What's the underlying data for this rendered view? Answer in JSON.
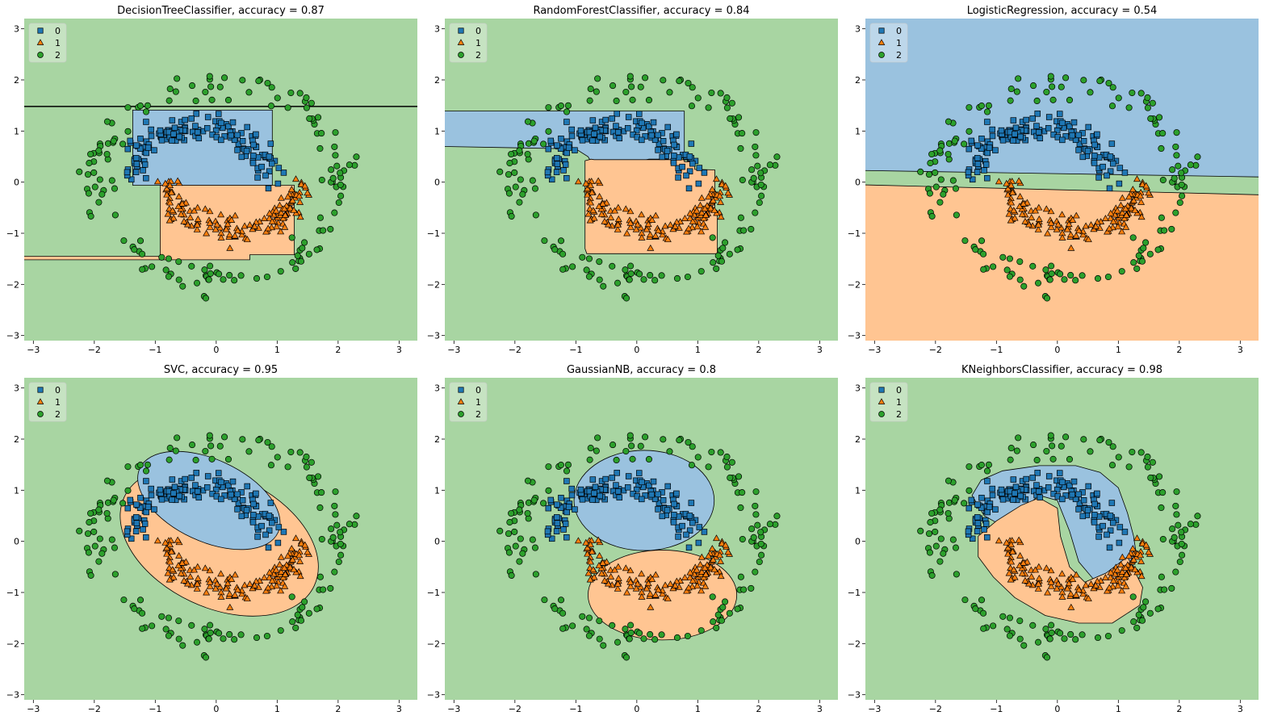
{
  "chart_data": [
    {
      "type": "scatter",
      "title": "DecisionTreeClassifier, accuracy = 0.87",
      "classifier": "DecisionTreeClassifier",
      "accuracy": 0.87,
      "decision_regions": "axis-aligned rectangles",
      "xlim": [
        -3.15,
        3.3
      ],
      "ylim": [
        -3.1,
        3.2
      ],
      "xticks": [
        "−3",
        "−2",
        "−1",
        "0",
        "1",
        "2",
        "3"
      ],
      "yticks": [
        "−3",
        "−2",
        "−1",
        "0",
        "1",
        "2",
        "3"
      ],
      "legend": [
        "0",
        "1",
        "2"
      ],
      "legend_position": "upper-left"
    },
    {
      "type": "scatter",
      "title": "RandomForestClassifier, accuracy = 0.84",
      "classifier": "RandomForestClassifier",
      "accuracy": 0.84,
      "decision_regions": "jagged axis-aligned ensemble",
      "xlim": [
        -3.15,
        3.3
      ],
      "ylim": [
        -3.1,
        3.2
      ],
      "xticks": [
        "−3",
        "−2",
        "−1",
        "0",
        "1",
        "2",
        "3"
      ],
      "yticks": [
        "−3",
        "−2",
        "−1",
        "0",
        "1",
        "2",
        "3"
      ],
      "legend": [
        "0",
        "1",
        "2"
      ],
      "legend_position": "upper-left"
    },
    {
      "type": "scatter",
      "title": "LogisticRegression, accuracy = 0.54",
      "classifier": "LogisticRegression",
      "accuracy": 0.54,
      "decision_regions": "linear bands",
      "xlim": [
        -3.15,
        3.3
      ],
      "ylim": [
        -3.1,
        3.2
      ],
      "xticks": [
        "−3",
        "−2",
        "−1",
        "0",
        "1",
        "2",
        "3"
      ],
      "yticks": [
        "−3",
        "−2",
        "−1",
        "0",
        "1",
        "2",
        "3"
      ],
      "legend": [
        "0",
        "1",
        "2"
      ],
      "legend_position": "upper-left"
    },
    {
      "type": "scatter",
      "title": "SVC, accuracy = 0.95",
      "classifier": "SVC",
      "accuracy": 0.95,
      "decision_regions": "smooth curved (RBF)",
      "xlim": [
        -3.15,
        3.3
      ],
      "ylim": [
        -3.1,
        3.2
      ],
      "xticks": [
        "−3",
        "−2",
        "−1",
        "0",
        "1",
        "2",
        "3"
      ],
      "yticks": [
        "−3",
        "−2",
        "−1",
        "0",
        "1",
        "2",
        "3"
      ],
      "legend": [
        "0",
        "1",
        "2"
      ],
      "legend_position": "upper-left"
    },
    {
      "type": "scatter",
      "title": "GaussianNB, accuracy = 0.8",
      "classifier": "GaussianNB",
      "accuracy": 0.8,
      "decision_regions": "quadratic ellipses",
      "xlim": [
        -3.15,
        3.3
      ],
      "ylim": [
        -3.1,
        3.2
      ],
      "xticks": [
        "−3",
        "−2",
        "−1",
        "0",
        "1",
        "2",
        "3"
      ],
      "yticks": [
        "−3",
        "−2",
        "−1",
        "0",
        "1",
        "2",
        "3"
      ],
      "legend": [
        "0",
        "1",
        "2"
      ],
      "legend_position": "upper-left"
    },
    {
      "type": "scatter",
      "title": "KNeighborsClassifier, accuracy = 0.98",
      "classifier": "KNeighborsClassifier",
      "accuracy": 0.98,
      "decision_regions": "irregular local",
      "xlim": [
        -3.15,
        3.3
      ],
      "ylim": [
        -3.1,
        3.2
      ],
      "xticks": [
        "−3",
        "−2",
        "−1",
        "0",
        "1",
        "2",
        "3"
      ],
      "yticks": [
        "−3",
        "−2",
        "−1",
        "0",
        "1",
        "2",
        "3"
      ],
      "legend": [
        "0",
        "1",
        "2"
      ],
      "legend_position": "upper-left"
    }
  ],
  "dataset": {
    "classes": [
      "0",
      "1",
      "2"
    ],
    "class_markers": [
      "square",
      "triangle",
      "circle"
    ],
    "class_marker_colors": [
      "#1f77b4",
      "#ff7f0e",
      "#2ca02c"
    ],
    "region_colors": [
      "#9ac2df",
      "#ffc592",
      "#a8d5a2"
    ],
    "class_0_shape": "upper half-moon arc from x=-1.4 to x=0.8, centered near (0, 1)",
    "class_1_shape": "lower half-moon arc from x=-0.8 to x=1.4, centered near (0.4, -0.8)",
    "class_2_shape": "outer ring of radius about 2.2 centered near (0.05, 0)",
    "points_per_class": 150
  }
}
